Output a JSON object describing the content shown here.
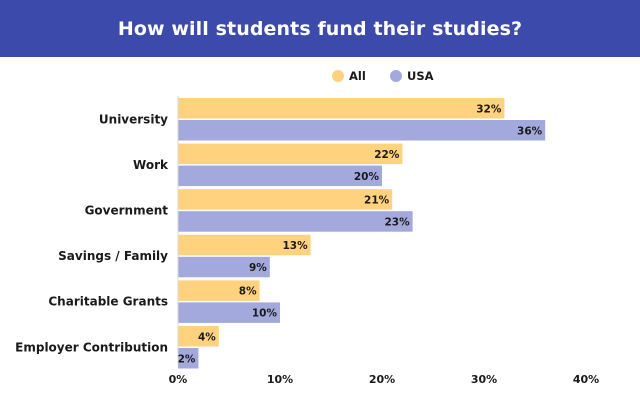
{
  "chart_data": {
    "type": "bar",
    "orientation": "horizontal",
    "title": "How will students fund their studies?",
    "categories": [
      "University",
      "Work",
      "Government",
      "Savings / Family",
      "Charitable Grants",
      "Employer Contribution"
    ],
    "series": [
      {
        "name": "All",
        "values": [
          32,
          22,
          21,
          13,
          8,
          4
        ],
        "color": "#ffd27f"
      },
      {
        "name": "USA",
        "values": [
          36,
          20,
          23,
          9,
          10,
          2
        ],
        "color": "#a3a9dd"
      }
    ],
    "xlim": [
      0,
      40
    ],
    "xticks": [
      0,
      10,
      20,
      30,
      40
    ],
    "tick_labels": [
      "0%",
      "10%",
      "20%",
      "30%",
      "40%"
    ],
    "value_suffix": "%",
    "legend": "top-center",
    "grid": false
  },
  "colors": {
    "header_bg": "#3c4bab"
  }
}
